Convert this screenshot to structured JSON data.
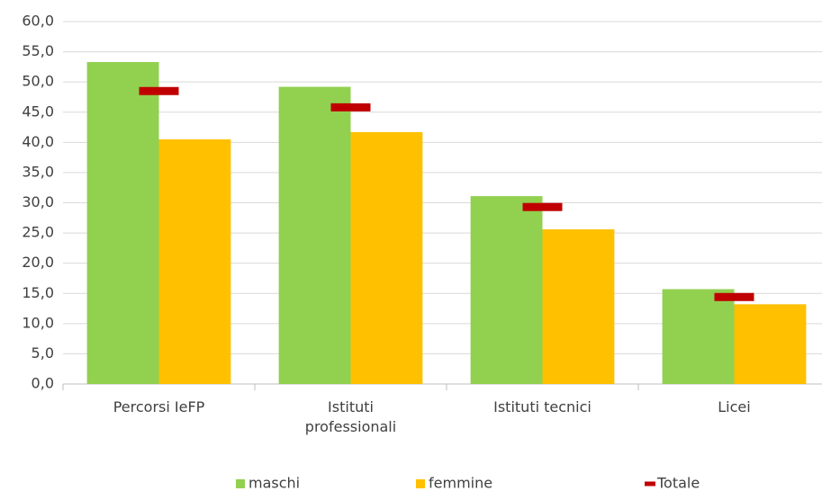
{
  "chart_data": {
    "type": "bar",
    "categories": [
      "Percorsi IeFP",
      "Istituti professionali",
      "Istituti tecnici",
      "Licei"
    ],
    "series": [
      {
        "name": "maschi",
        "color": "#92d050",
        "values": [
          53.3,
          49.2,
          31.1,
          15.7
        ]
      },
      {
        "name": "femmine",
        "color": "#ffc000",
        "values": [
          40.5,
          41.7,
          25.6,
          13.2
        ]
      },
      {
        "name": "Totale",
        "color": "#c00000",
        "style": "dash",
        "values": [
          48.5,
          45.8,
          29.3,
          14.4
        ]
      }
    ],
    "ylim": [
      0,
      60
    ],
    "yticks": [
      {
        "value": 0,
        "label": "0,0"
      },
      {
        "value": 5,
        "label": "5,0"
      },
      {
        "value": 10,
        "label": "10,0"
      },
      {
        "value": 15,
        "label": "15,0"
      },
      {
        "value": 20,
        "label": "20,0"
      },
      {
        "value": 25,
        "label": "25,0"
      },
      {
        "value": 30,
        "label": "30,0"
      },
      {
        "value": 35,
        "label": "35,0"
      },
      {
        "value": 40,
        "label": "40,0"
      },
      {
        "value": 45,
        "label": "45,0"
      },
      {
        "value": 50,
        "label": "50,0"
      },
      {
        "value": 55,
        "label": "55,0"
      },
      {
        "value": 60,
        "label": "60,0"
      }
    ],
    "grid": true,
    "legend": "bottom"
  }
}
